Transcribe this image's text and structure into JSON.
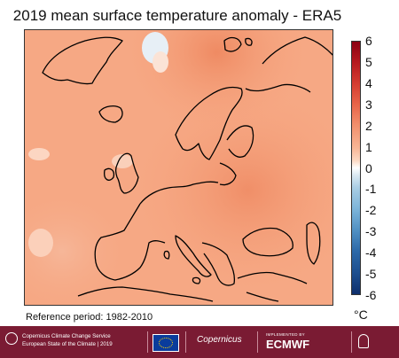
{
  "title": "2019 mean surface temperature anomaly - ERA5",
  "colorbar": {
    "ticks": [
      "6",
      "5",
      "4",
      "3",
      "2",
      "1",
      "0",
      "-1",
      "-2",
      "-3",
      "-4",
      "-5",
      "-6"
    ],
    "unit": "°C",
    "range": [
      -6,
      6
    ],
    "colors": [
      "#8b0012",
      "#d63e32",
      "#f28f6c",
      "#fcd8c2",
      "#ffffff",
      "#a8cde4",
      "#4f8fc2",
      "#0e2f6c"
    ]
  },
  "reference_period": "Reference period: 1982-2010",
  "footer": {
    "service_line1": "Copernicus Climate Change Service",
    "service_line2": "European State of the Climate | 2019",
    "copernicus_label": "Copernicus",
    "implemented_by": "IMPLEMENTED BY",
    "ecmwf_label": "ECMWF",
    "right_logo_text": "",
    "brand_color": "#7a1b33"
  },
  "icons": [
    "eu-flag-icon",
    "copernicus-logo-icon",
    "ecmwf-logo-icon",
    "c3s-logo-icon"
  ]
}
